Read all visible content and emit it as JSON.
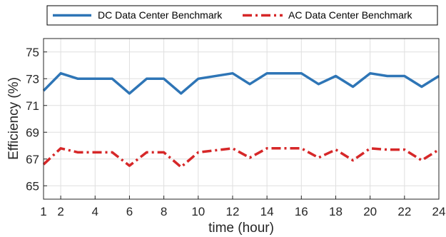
{
  "chart_data": {
    "type": "line",
    "xlabel": "time (hour)",
    "ylabel": "Efficiency (%)",
    "xlim": [
      1,
      24
    ],
    "ylim": [
      64,
      76
    ],
    "xticks": [
      1,
      2,
      4,
      6,
      8,
      10,
      12,
      14,
      16,
      18,
      20,
      22,
      24
    ],
    "yticks": [
      65,
      67,
      69,
      71,
      73,
      75
    ],
    "grid": true,
    "legend_position": "top, outside plot",
    "x": [
      1,
      2,
      3,
      4,
      5,
      6,
      7,
      8,
      9,
      10,
      12,
      13,
      14,
      16,
      17,
      18,
      19,
      20,
      21,
      22,
      23,
      24
    ],
    "series": [
      {
        "name": "DC Data Center Benchmark",
        "color": "#2e75b6",
        "style": "solid",
        "values": [
          72.1,
          73.4,
          73.0,
          73.0,
          73.0,
          71.9,
          73.0,
          73.0,
          71.9,
          73.0,
          73.4,
          72.6,
          73.4,
          73.4,
          72.6,
          73.2,
          72.4,
          73.4,
          73.2,
          73.2,
          72.4,
          73.2
        ]
      },
      {
        "name": "AC Data Center Benchmark",
        "color": "#d62728",
        "style": "dash-dot",
        "values": [
          66.6,
          67.8,
          67.5,
          67.5,
          67.5,
          66.5,
          67.5,
          67.5,
          66.4,
          67.5,
          67.8,
          67.1,
          67.8,
          67.8,
          67.1,
          67.7,
          66.9,
          67.8,
          67.7,
          67.7,
          66.9,
          67.7
        ]
      }
    ]
  }
}
